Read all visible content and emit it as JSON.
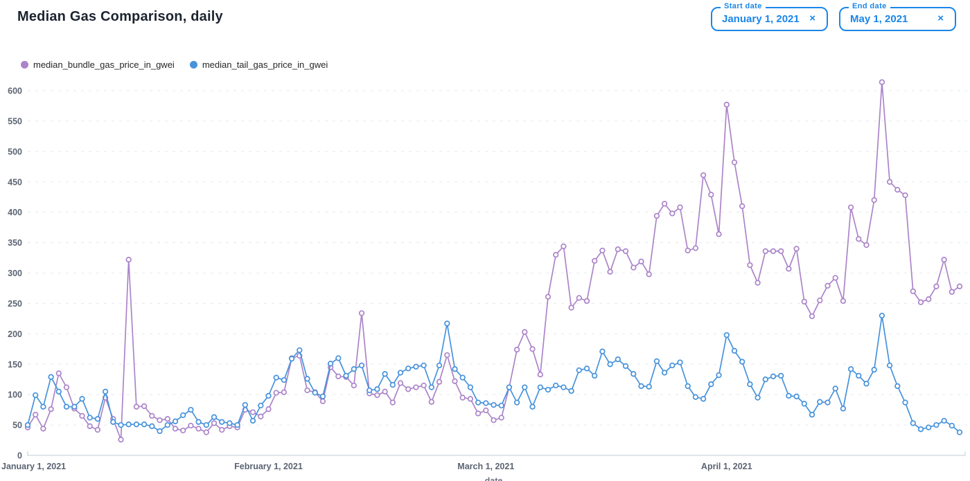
{
  "header": {
    "title": "Median Gas Comparison, daily"
  },
  "filters": {
    "start": {
      "label": "Start date",
      "value": "January 1, 2021",
      "clear_icon": "×"
    },
    "end": {
      "label": "End date",
      "value": "May 1, 2021",
      "clear_icon": "×"
    }
  },
  "chart_data": {
    "type": "line",
    "title": "Median Gas Comparison, daily",
    "xlabel": "date",
    "ylabel": "",
    "x_range": [
      "January 1, 2021",
      "May 1, 2021"
    ],
    "x_unit": "day",
    "x_tick_days": [
      0,
      31,
      59,
      90
    ],
    "x_tick_labels": [
      "January 1, 2021",
      "February 1, 2021",
      "March 1, 2021",
      "April 1, 2021"
    ],
    "y_ticks": [
      0,
      50,
      100,
      150,
      200,
      250,
      300,
      350,
      400,
      450,
      500,
      550,
      600
    ],
    "ylim": [
      0,
      620
    ],
    "total_days": 120,
    "grid": "horizontal-dashed",
    "legend_position": "top-left",
    "marker": "open-circle",
    "series": [
      {
        "name": "median_bundle_gas_price_in_gwei",
        "color": "#ab84c9",
        "values": [
          46,
          67,
          44,
          76,
          135,
          112,
          77,
          65,
          48,
          42,
          95,
          60,
          26,
          322,
          80,
          81,
          65,
          58,
          60,
          44,
          41,
          49,
          44,
          38,
          53,
          42,
          48,
          46,
          75,
          71,
          64,
          76,
          103,
          104,
          160,
          164,
          107,
          104,
          89,
          145,
          130,
          129,
          115,
          234,
          102,
          99,
          105,
          87,
          119,
          109,
          112,
          115,
          88,
          121,
          165,
          122,
          95,
          93,
          69,
          74,
          58,
          62,
          112,
          174,
          203,
          175,
          133,
          261,
          330,
          344,
          243,
          259,
          254,
          320,
          337,
          302,
          339,
          336,
          309,
          319,
          298,
          394,
          414,
          398,
          408,
          337,
          341,
          461,
          429,
          364,
          577,
          482,
          410,
          313,
          284,
          336,
          336,
          336,
          307,
          340,
          253,
          229,
          255,
          279,
          292,
          254,
          408,
          356,
          346,
          420,
          614,
          450,
          437,
          428,
          270,
          252,
          257,
          278,
          322,
          269,
          278
        ]
      },
      {
        "name": "median_tail_gas_price_in_gwei",
        "color": "#4692db",
        "values": [
          50,
          99,
          80,
          129,
          105,
          80,
          80,
          93,
          62,
          60,
          105,
          55,
          50,
          51,
          51,
          51,
          48,
          40,
          50,
          56,
          66,
          75,
          55,
          50,
          63,
          55,
          53,
          50,
          83,
          57,
          82,
          98,
          128,
          124,
          159,
          173,
          126,
          103,
          97,
          151,
          160,
          131,
          142,
          148,
          107,
          109,
          134,
          116,
          136,
          143,
          146,
          148,
          112,
          148,
          217,
          142,
          128,
          112,
          87,
          86,
          83,
          82,
          112,
          87,
          112,
          80,
          112,
          108,
          115,
          112,
          106,
          140,
          143,
          131,
          171,
          150,
          158,
          147,
          134,
          114,
          113,
          155,
          136,
          148,
          153,
          114,
          96,
          93,
          117,
          132,
          198,
          172,
          154,
          117,
          95,
          125,
          130,
          131,
          98,
          97,
          85,
          67,
          88,
          87,
          110,
          77,
          142,
          131,
          118,
          141,
          230,
          148,
          114,
          87,
          53,
          43,
          46,
          50,
          57,
          49,
          38
        ]
      }
    ]
  },
  "style": {
    "grid_color": "#e5e8ec",
    "axis_color": "#ccd5dd",
    "tick_label_color": "#5b6472",
    "accent_blue": "#1a86e8"
  }
}
